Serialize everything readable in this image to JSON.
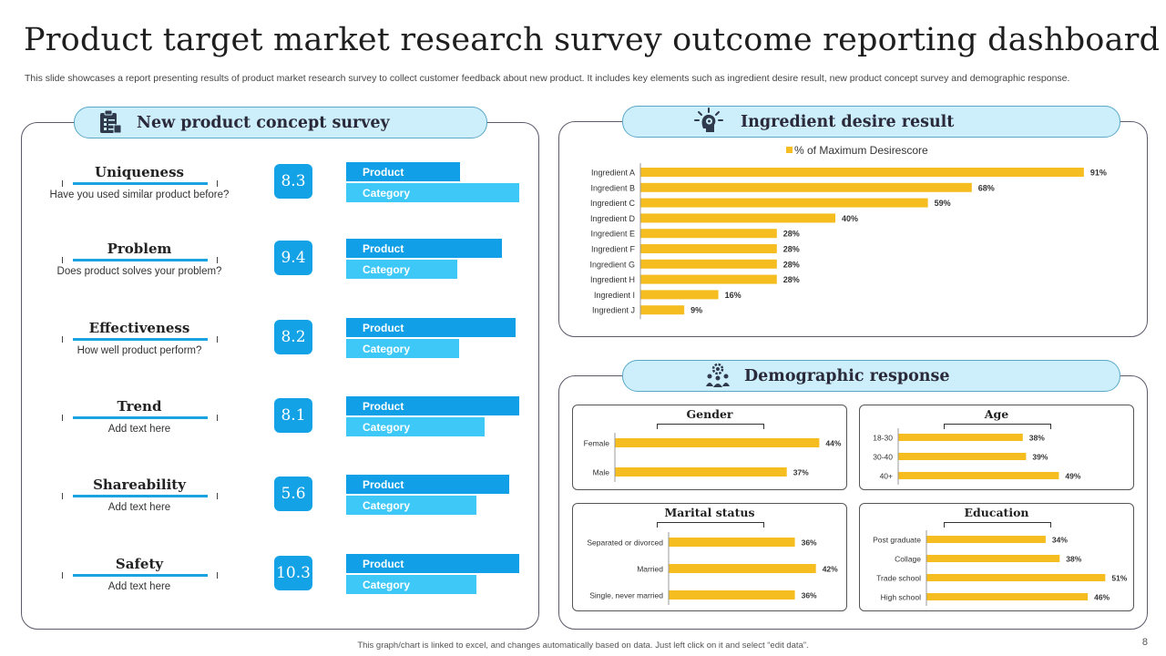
{
  "title": "Product target market research survey outcome reporting dashboard",
  "subtitle": "This slide showcases a report presenting results of product market research survey to collect customer feedback about new product. It includes key elements such as ingredient desire result, new product concept survey and demographic response.",
  "concept": {
    "header": "New product concept survey",
    "product_label": "Product",
    "category_label": "Category",
    "items": [
      {
        "name": "Uniqueness",
        "question": "Have you used similar product before?",
        "score": "8.3",
        "product": 0.66,
        "category": 1.0
      },
      {
        "name": "Problem",
        "question": "Does product solves your problem?",
        "score": "9.4",
        "product": 0.9,
        "category": 0.64
      },
      {
        "name": "Effectiveness",
        "question": "How well product perform?",
        "score": "8.2",
        "product": 0.98,
        "category": 0.65
      },
      {
        "name": "Trend",
        "question": "Add text here",
        "score": "8.1",
        "product": 1.0,
        "category": 0.8
      },
      {
        "name": "Shareability",
        "question": "Add text here",
        "score": "5.6",
        "product": 0.94,
        "category": 0.75
      },
      {
        "name": "Safety",
        "question": "Add text here",
        "score": "10.3",
        "product": 1.0,
        "category": 0.75
      }
    ]
  },
  "ingredient": {
    "header": "Ingredient desire result"
  },
  "demographic": {
    "header": "Demographic response"
  },
  "chart_data": [
    {
      "type": "bar",
      "orientation": "horizontal",
      "legend": "% of Maximum Desirescore",
      "categories": [
        "Ingredient A",
        "Ingredient B",
        "Ingredient C",
        "Ingredient D",
        "Ingredient E",
        "Ingredient F",
        "Ingredient G",
        "Ingredient H",
        "Ingredient I",
        "Ingredient J"
      ],
      "values": [
        91,
        68,
        59,
        40,
        28,
        28,
        28,
        28,
        16,
        9
      ],
      "value_labels": [
        "91%",
        "68%",
        "59%",
        "40%",
        "28%",
        "28%",
        "28%",
        "28%",
        "16%",
        "9%"
      ],
      "color": "#f5bd1f"
    },
    {
      "type": "bar",
      "orientation": "horizontal",
      "title": "Gender",
      "categories": [
        "Female",
        "Male"
      ],
      "values": [
        44,
        37
      ],
      "value_labels": [
        "44%",
        "37%"
      ],
      "color": "#f5bd1f"
    },
    {
      "type": "bar",
      "orientation": "horizontal",
      "title": "Age",
      "categories": [
        "18-30",
        "30-40",
        "40+"
      ],
      "values": [
        38,
        39,
        49
      ],
      "value_labels": [
        "38%",
        "39%",
        "49%"
      ],
      "color": "#f5bd1f"
    },
    {
      "type": "bar",
      "orientation": "horizontal",
      "title": "Marital status",
      "categories": [
        "Separated or divorced",
        "Married",
        "Single, never married"
      ],
      "values": [
        36,
        42,
        36
      ],
      "value_labels": [
        "36%",
        "42%",
        "36%"
      ],
      "color": "#f5bd1f"
    },
    {
      "type": "bar",
      "orientation": "horizontal",
      "title": "Education",
      "categories": [
        "Post graduate",
        "Collage",
        "Trade school",
        "High school"
      ],
      "values": [
        34,
        38,
        51,
        46
      ],
      "value_labels": [
        "34%",
        "38%",
        "51%",
        "46%"
      ],
      "color": "#f5bd1f"
    }
  ],
  "footer": "This graph/chart is linked to excel, and changes automatically based on data. Just left click on it and select “edit data”.",
  "page_number": "8"
}
